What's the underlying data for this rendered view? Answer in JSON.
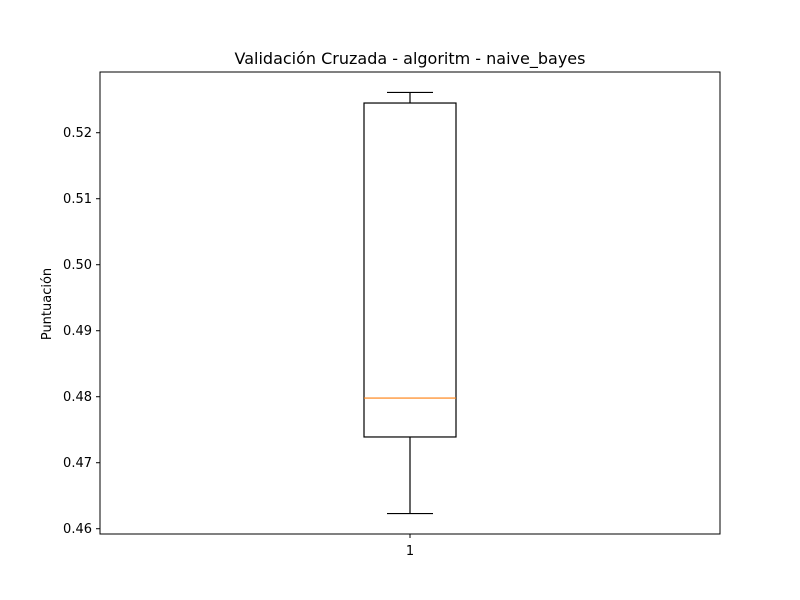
{
  "chart_data": {
    "type": "box",
    "title": "Validación Cruzada - algoritm - naive_bayes",
    "xlabel": "",
    "ylabel": "Puntuación",
    "categories": [
      "1"
    ],
    "ylim": [
      0.4592,
      0.5292
    ],
    "yticks": [
      0.46,
      0.47,
      0.48,
      0.49,
      0.5,
      0.51,
      0.52
    ],
    "ytick_labels": [
      "0.46",
      "0.47",
      "0.48",
      "0.49",
      "0.50",
      "0.51",
      "0.52"
    ],
    "grid": false,
    "boxes": [
      {
        "category": "1",
        "whisker_low": 0.4623,
        "q1": 0.4739,
        "median": 0.4798,
        "q3": 0.5245,
        "whisker_high": 0.5261
      }
    ],
    "colors": {
      "box": "#000000",
      "median": "#ff7f0e",
      "axes": "#000000"
    }
  }
}
